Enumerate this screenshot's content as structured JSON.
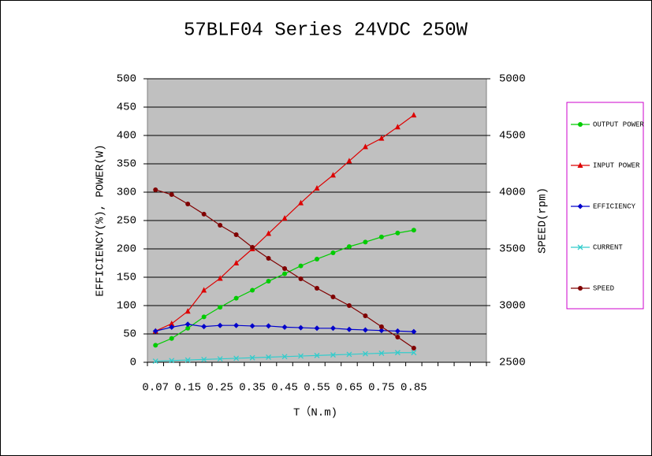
{
  "chart_data": {
    "type": "line",
    "title": "57BLF04 Series 24VDC 250W",
    "x_label": "T（N.m)",
    "y_label": "EFFICIENCY(%), POWER(W)",
    "y2_label": "SPEED(rpm)",
    "categories": [
      "0.07",
      null,
      "0.15",
      null,
      "0.25",
      null,
      "0.35",
      null,
      "0.45",
      null,
      "0.55",
      null,
      "0.65",
      null,
      "0.75",
      null,
      "0.85",
      null,
      null,
      null,
      null
    ],
    "ylim": [
      0,
      500
    ],
    "yticks": [
      0,
      50,
      100,
      150,
      200,
      250,
      300,
      350,
      400,
      450,
      500
    ],
    "y2lim": [
      2500,
      5000
    ],
    "y2ticks": [
      2500,
      3000,
      3500,
      4000,
      4500,
      5000
    ],
    "grid": true,
    "legend": "right",
    "series": [
      {
        "name": "OUTPUT POWER",
        "color": "#00cc00",
        "marker": "circle",
        "values": [
          30,
          42,
          60,
          80,
          97,
          113,
          127,
          143,
          156,
          170,
          182,
          193,
          204,
          212,
          221,
          228,
          233,
          null,
          null,
          null,
          null
        ]
      },
      {
        "name": "INPUT POWER",
        "color": "#dd0000",
        "marker": "triangle",
        "values": [
          55,
          68,
          90,
          127,
          148,
          175,
          200,
          227,
          254,
          281,
          307,
          330,
          355,
          380,
          395,
          415,
          436,
          null,
          null,
          null,
          null
        ]
      },
      {
        "name": "EFFICIENCY",
        "color": "#0000cc",
        "marker": "diamond",
        "values": [
          55,
          62,
          67,
          63,
          65,
          65,
          64,
          64,
          62,
          61,
          60,
          60,
          58,
          57,
          56,
          55,
          54,
          null,
          null,
          null,
          null
        ]
      },
      {
        "name": "CURRENT",
        "color": "#33cccc",
        "marker": "x",
        "values": [
          2,
          3,
          4,
          5,
          6,
          7,
          8,
          9,
          10,
          11,
          12,
          13,
          14,
          15,
          16,
          17,
          17,
          null,
          null,
          null,
          null
        ]
      },
      {
        "name": "SPEED",
        "color": "#800000",
        "marker": "circle",
        "axis": "y2",
        "values": [
          4021,
          3979,
          3896,
          3806,
          3708,
          3625,
          3514,
          3417,
          3326,
          3236,
          3153,
          3076,
          3000,
          2910,
          2813,
          2722,
          2625,
          null,
          null,
          null,
          null
        ]
      }
    ]
  }
}
